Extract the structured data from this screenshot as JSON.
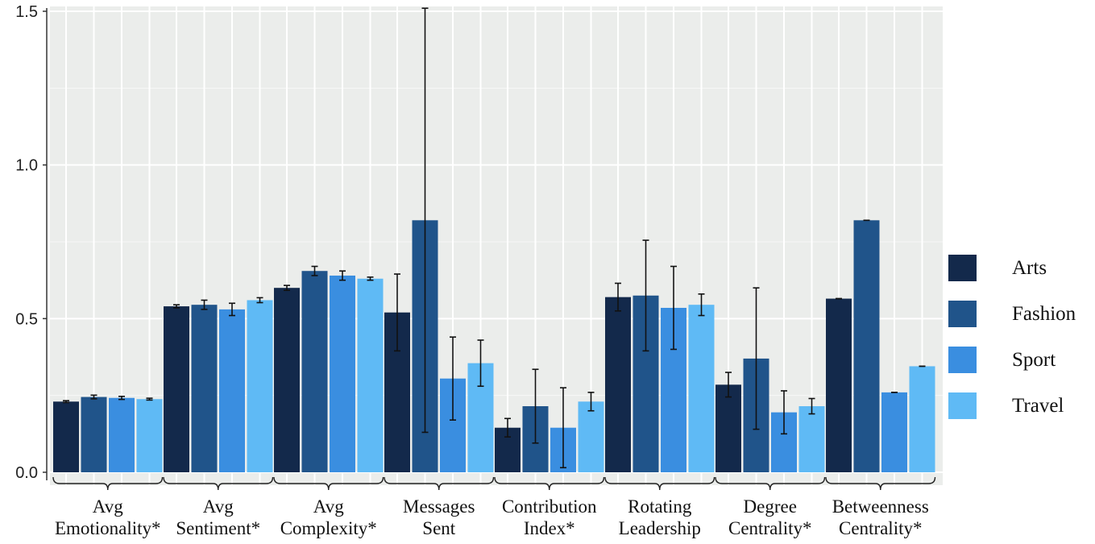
{
  "chart_data": {
    "type": "bar",
    "title": "",
    "xlabel": "",
    "ylabel": "",
    "ylim": [
      0,
      1.5
    ],
    "yticks": [
      "0.0",
      "0.5",
      "1.0",
      "1.5"
    ],
    "ytick_values": [
      0,
      0.5,
      1.0,
      1.5
    ],
    "grid": true,
    "legend_position": "right",
    "categories": [
      [
        "Avg",
        "Emotionality*"
      ],
      [
        "Avg",
        "Sentiment*"
      ],
      [
        "Avg",
        "Complexity*"
      ],
      [
        "Messages",
        "Sent"
      ],
      [
        "Contribution",
        "Index*"
      ],
      [
        "Rotating",
        "Leadership"
      ],
      [
        "Degree",
        "Centrality*"
      ],
      [
        "Betweenness",
        "Centrality*"
      ]
    ],
    "series": [
      {
        "name": "Arts",
        "color": "#13294b",
        "values": [
          0.23,
          0.54,
          0.6,
          0.52,
          0.145,
          0.57,
          0.285,
          0.565
        ],
        "errors": [
          0.003,
          0.005,
          0.008,
          0.125,
          0.03,
          0.045,
          0.04,
          0.0
        ]
      },
      {
        "name": "Fashion",
        "color": "#20548a",
        "values": [
          0.245,
          0.545,
          0.655,
          0.82,
          0.215,
          0.575,
          0.37,
          0.82
        ],
        "errors": [
          0.006,
          0.015,
          0.015,
          0.69,
          0.12,
          0.18,
          0.23,
          0.0
        ]
      },
      {
        "name": "Sport",
        "color": "#3a8ee0",
        "values": [
          0.242,
          0.53,
          0.64,
          0.305,
          0.145,
          0.535,
          0.195,
          0.26
        ],
        "errors": [
          0.005,
          0.02,
          0.015,
          0.135,
          0.13,
          0.135,
          0.07,
          0.0
        ]
      },
      {
        "name": "Travel",
        "color": "#5fbaf5",
        "values": [
          0.238,
          0.56,
          0.63,
          0.355,
          0.23,
          0.545,
          0.215,
          0.345
        ],
        "errors": [
          0.003,
          0.008,
          0.005,
          0.075,
          0.03,
          0.035,
          0.025,
          0.0
        ]
      }
    ]
  }
}
